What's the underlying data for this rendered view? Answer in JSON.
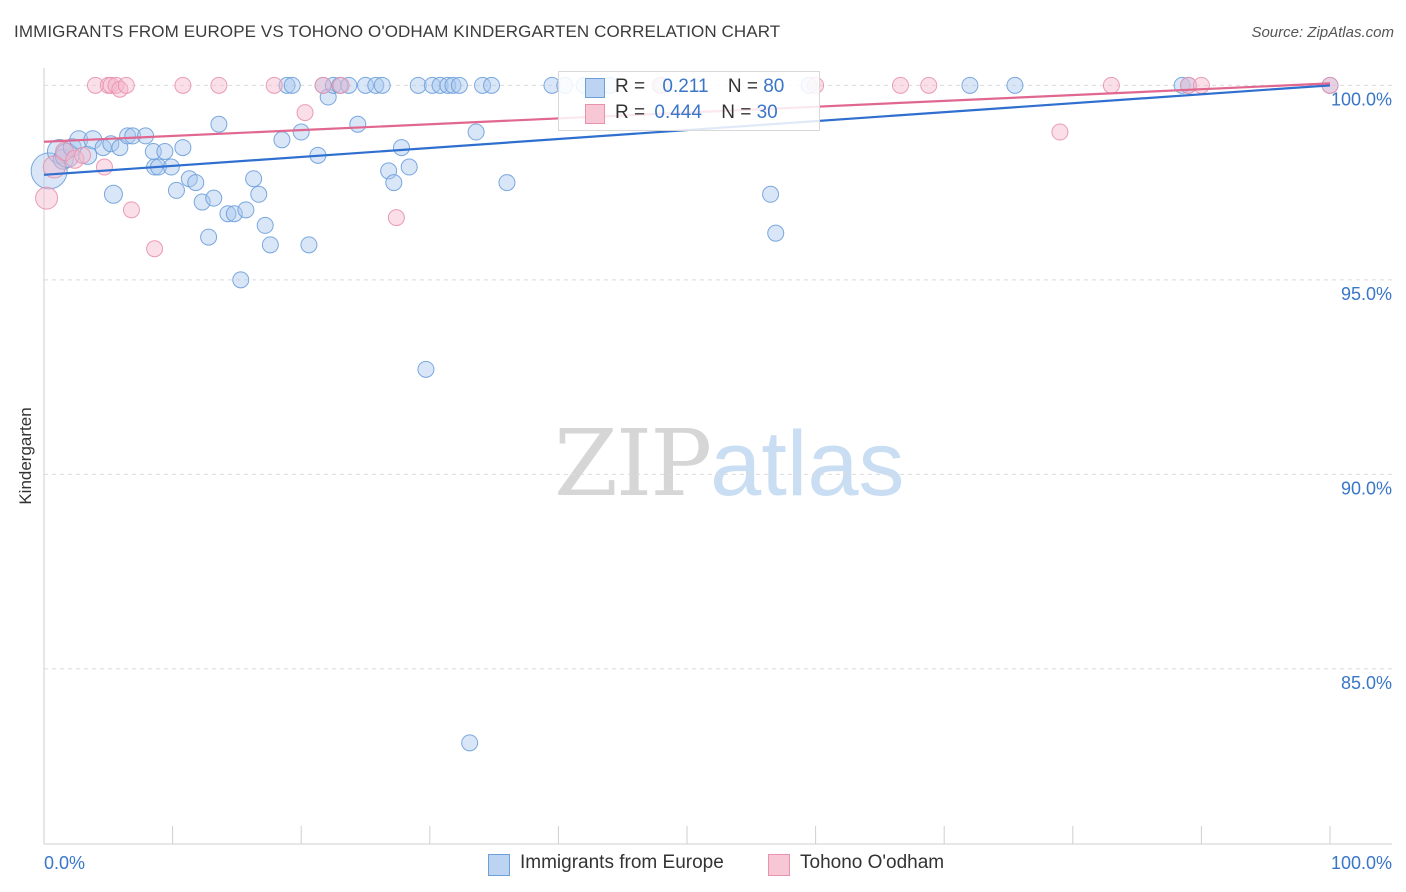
{
  "header": {
    "title": "IMMIGRANTS FROM EUROPE VS TOHONO O'ODHAM KINDERGARTEN CORRELATION CHART",
    "source": "Source: ZipAtlas.com"
  },
  "watermark": {
    "zip": "ZIP",
    "atlas": "atlas"
  },
  "legend": {
    "rows": [
      {
        "r_label": "R =",
        "r_value": "0.211",
        "n_label": "N =",
        "n_value": "80"
      },
      {
        "r_label": "R =",
        "r_value": "0.444",
        "n_label": "N =",
        "n_value": "30"
      }
    ]
  },
  "colors": {
    "blue_fill": "#a9c8ee",
    "blue_stroke": "#6d9fdb",
    "blue_line": "#2f6fcf",
    "pink_fill": "#f4b8cb",
    "pink_stroke": "#e892ad",
    "pink_line": "#e0678f",
    "tick_label": "#3a76c8",
    "grid": "#dcdcdc"
  },
  "chart_data": {
    "type": "scatter",
    "title": "IMMIGRANTS FROM EUROPE VS TOHONO O'ODHAM KINDERGARTEN CORRELATION CHART",
    "xlabel": "",
    "ylabel": "Kindergarten",
    "xlim": [
      0,
      100
    ],
    "ylim": [
      80.5,
      100.6
    ],
    "x_tick_labels": [
      "0.0%",
      "100.0%"
    ],
    "y_ticks": [
      {
        "value": 100,
        "label": "100.0%"
      },
      {
        "value": 95,
        "label": "95.0%"
      },
      {
        "value": 90,
        "label": "90.0%"
      },
      {
        "value": 85,
        "label": "85.0%"
      }
    ],
    "grid": true,
    "legend_position": "top-center",
    "series": [
      {
        "name": "Immigrants from Europe",
        "R": 0.211,
        "N": 80,
        "trend": {
          "x": [
            0,
            100
          ],
          "y": [
            97.7,
            100.0
          ]
        },
        "points": [
          [
            0.4,
            97.8,
            18
          ],
          [
            1.2,
            98.3,
            12
          ],
          [
            1.5,
            98.1,
            10
          ],
          [
            1.8,
            98.2,
            12
          ],
          [
            2.2,
            98.4,
            9
          ],
          [
            2.7,
            98.6,
            9
          ],
          [
            3.4,
            98.2,
            9
          ],
          [
            3.8,
            98.6,
            9
          ],
          [
            4.6,
            98.4,
            8
          ],
          [
            5.2,
            98.5,
            8
          ],
          [
            5.4,
            97.2,
            9
          ],
          [
            5.9,
            98.4,
            8
          ],
          [
            6.5,
            98.7,
            8
          ],
          [
            6.9,
            98.7,
            8
          ],
          [
            7.9,
            98.7,
            8
          ],
          [
            8.5,
            98.3,
            8
          ],
          [
            8.6,
            97.9,
            8
          ],
          [
            8.9,
            97.9,
            8
          ],
          [
            9.4,
            98.3,
            8
          ],
          [
            9.9,
            97.9,
            8
          ],
          [
            10.3,
            97.3,
            8
          ],
          [
            10.8,
            98.4,
            8
          ],
          [
            11.3,
            97.6,
            8
          ],
          [
            11.8,
            97.5,
            8
          ],
          [
            12.3,
            97.0,
            8
          ],
          [
            12.8,
            96.1,
            8
          ],
          [
            13.2,
            97.1,
            8
          ],
          [
            13.6,
            99.0,
            8
          ],
          [
            14.3,
            96.7,
            8
          ],
          [
            14.8,
            96.7,
            8
          ],
          [
            15.3,
            95.0,
            8
          ],
          [
            15.7,
            96.8,
            8
          ],
          [
            16.3,
            97.6,
            8
          ],
          [
            16.7,
            97.2,
            8
          ],
          [
            17.2,
            96.4,
            8
          ],
          [
            17.6,
            95.9,
            8
          ],
          [
            18.5,
            98.6,
            8
          ],
          [
            18.9,
            100.0,
            8
          ],
          [
            19.3,
            100.0,
            8
          ],
          [
            20.0,
            98.8,
            8
          ],
          [
            20.6,
            95.9,
            8
          ],
          [
            21.3,
            98.2,
            8
          ],
          [
            21.7,
            100.0,
            8
          ],
          [
            22.1,
            99.7,
            8
          ],
          [
            22.5,
            100.0,
            8
          ],
          [
            23.0,
            100.0,
            8
          ],
          [
            23.7,
            100.0,
            8
          ],
          [
            24.4,
            99.0,
            8
          ],
          [
            25.0,
            100.0,
            8
          ],
          [
            25.8,
            100.0,
            8
          ],
          [
            26.3,
            100.0,
            8
          ],
          [
            26.8,
            97.8,
            8
          ],
          [
            27.2,
            97.5,
            8
          ],
          [
            27.8,
            98.4,
            8
          ],
          [
            28.4,
            97.9,
            8
          ],
          [
            29.1,
            100.0,
            8
          ],
          [
            29.7,
            92.7,
            8
          ],
          [
            30.2,
            100.0,
            8
          ],
          [
            30.8,
            100.0,
            8
          ],
          [
            31.4,
            100.0,
            8
          ],
          [
            31.8,
            100.0,
            8
          ],
          [
            32.3,
            100.0,
            8
          ],
          [
            33.1,
            83.1,
            8
          ],
          [
            33.6,
            98.8,
            8
          ],
          [
            34.1,
            100.0,
            8
          ],
          [
            34.8,
            100.0,
            8
          ],
          [
            36.0,
            97.5,
            8
          ],
          [
            39.5,
            100.0,
            8
          ],
          [
            40.5,
            100.0,
            8
          ],
          [
            42.0,
            100.0,
            8
          ],
          [
            44.0,
            100.0,
            8
          ],
          [
            48.0,
            100.0,
            8
          ],
          [
            56.5,
            97.2,
            8
          ],
          [
            56.9,
            96.2,
            8
          ],
          [
            59.5,
            100.0,
            8
          ],
          [
            72.0,
            100.0,
            8
          ],
          [
            75.5,
            100.0,
            8
          ],
          [
            88.5,
            100.0,
            8
          ],
          [
            89.0,
            100.0,
            8
          ],
          [
            100.0,
            100.0,
            8
          ]
        ]
      },
      {
        "name": "Tohono O'odham",
        "R": 0.444,
        "N": 30,
        "trend": {
          "x": [
            0,
            100
          ],
          "y": [
            98.55,
            100.05
          ]
        },
        "points": [
          [
            0.2,
            97.1,
            11
          ],
          [
            0.8,
            97.9,
            11
          ],
          [
            1.6,
            98.3,
            9
          ],
          [
            2.4,
            98.1,
            9
          ],
          [
            3.0,
            98.2,
            8
          ],
          [
            4.0,
            100.0,
            8
          ],
          [
            4.7,
            97.9,
            8
          ],
          [
            5.0,
            100.0,
            8
          ],
          [
            5.2,
            100.0,
            8
          ],
          [
            5.6,
            100.0,
            8
          ],
          [
            5.9,
            99.9,
            8
          ],
          [
            6.4,
            100.0,
            8
          ],
          [
            6.8,
            96.8,
            8
          ],
          [
            8.6,
            95.8,
            8
          ],
          [
            10.8,
            100.0,
            8
          ],
          [
            13.6,
            100.0,
            8
          ],
          [
            17.9,
            100.0,
            8
          ],
          [
            20.3,
            99.3,
            8
          ],
          [
            21.7,
            100.0,
            8
          ],
          [
            23.1,
            100.0,
            8
          ],
          [
            27.4,
            96.6,
            8
          ],
          [
            47.9,
            100.0,
            8
          ],
          [
            60.0,
            100.0,
            8
          ],
          [
            66.6,
            100.0,
            8
          ],
          [
            68.8,
            100.0,
            8
          ],
          [
            79.0,
            98.8,
            8
          ],
          [
            83.0,
            100.0,
            8
          ],
          [
            89.0,
            100.0,
            8
          ],
          [
            90.0,
            100.0,
            8
          ],
          [
            100.0,
            100.0,
            8
          ]
        ]
      }
    ]
  }
}
